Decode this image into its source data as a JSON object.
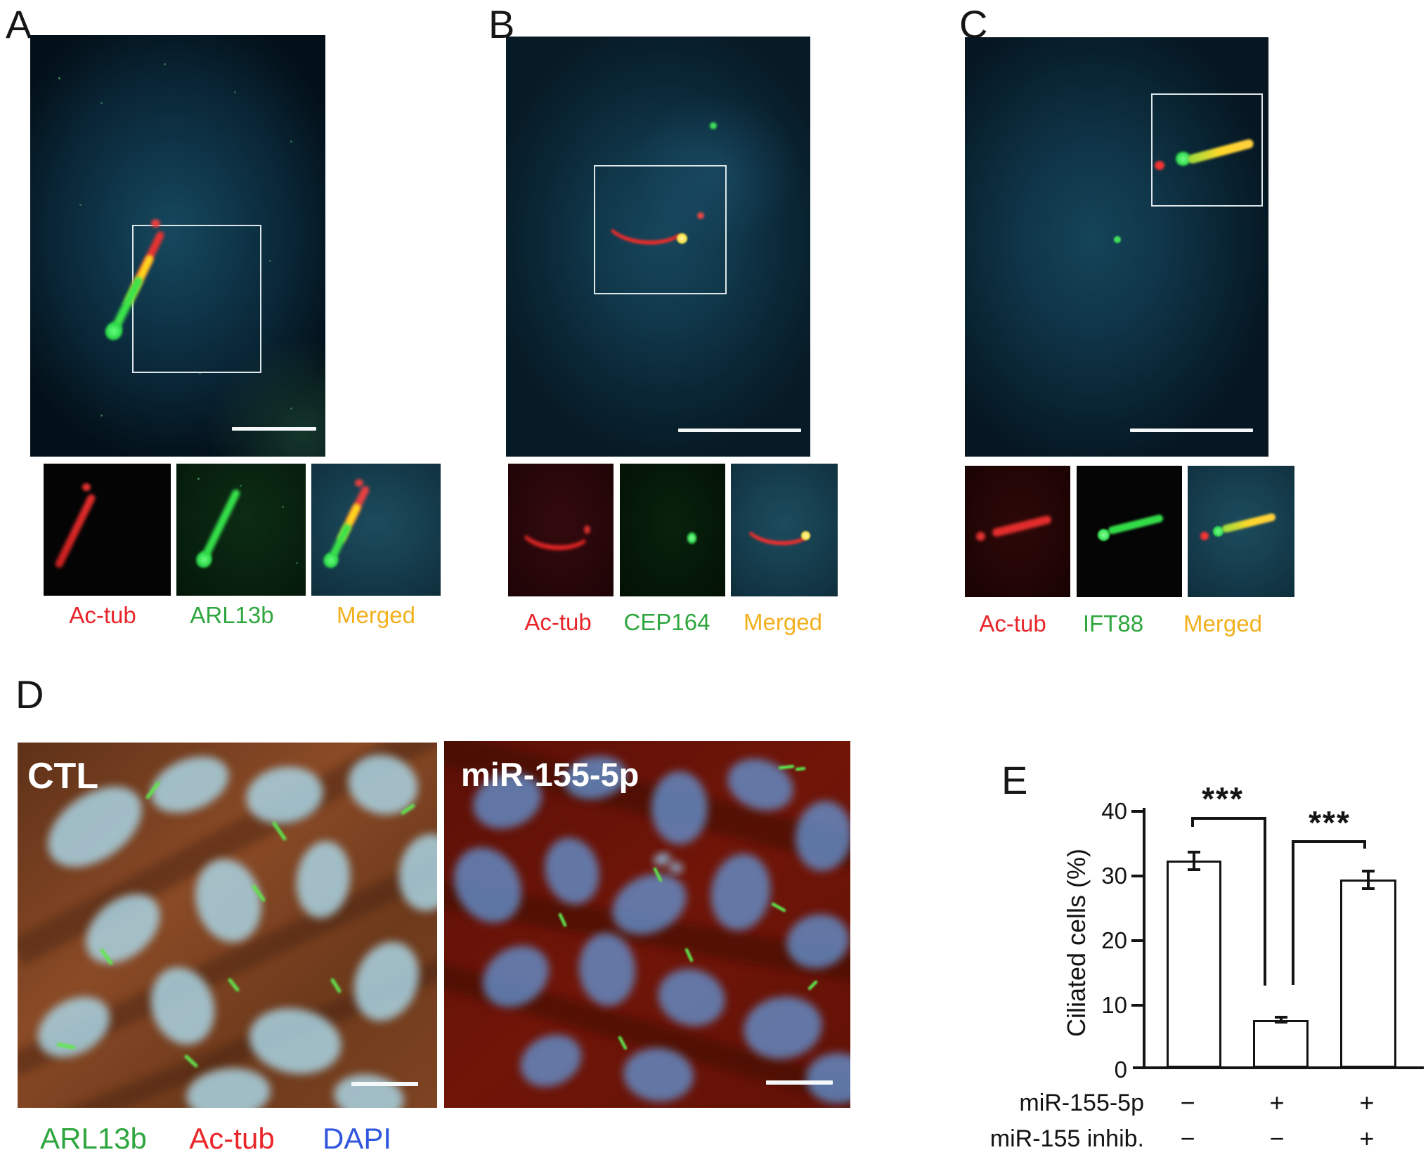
{
  "figure": {
    "panels": {
      "a": {
        "letter": "A",
        "channels": [
          {
            "label": "Ac-tub",
            "color": "#e8262b"
          },
          {
            "label": "ARL13b",
            "color": "#2fa63f"
          },
          {
            "label": "Merged",
            "color": "#f2b01e"
          }
        ]
      },
      "b": {
        "letter": "B",
        "channels": [
          {
            "label": "Ac-tub",
            "color": "#e8262b"
          },
          {
            "label": "CEP164",
            "color": "#2fa63f"
          },
          {
            "label": "Merged",
            "color": "#f2b01e"
          }
        ]
      },
      "c": {
        "letter": "C",
        "channels": [
          {
            "label": "Ac-tub",
            "color": "#e8262b"
          },
          {
            "label": "IFT88",
            "color": "#2fa63f"
          },
          {
            "label": "Merged",
            "color": "#f2b01e"
          }
        ]
      },
      "d": {
        "letter": "D",
        "left_image_label": "CTL",
        "right_image_label": "miR-155-5p",
        "legend": [
          {
            "label": "ARL13b",
            "color": "#2fa63f"
          },
          {
            "label": "Ac-tub",
            "color": "#e8262b"
          },
          {
            "label": "DAPI",
            "color": "#3056dd"
          }
        ]
      },
      "e": {
        "letter": "E"
      }
    }
  },
  "chart_data": {
    "type": "bar",
    "title": "",
    "ylabel": "Ciliated cells (%)",
    "xlabel": "",
    "ylim": [
      0,
      40
    ],
    "yticks": [
      40,
      30,
      20,
      10,
      0
    ],
    "grid": false,
    "bar_fill": "#ffffff",
    "bar_border": "#141414",
    "categories": [
      "control",
      "miR-155-5p",
      "miR-155-5p + miR-155 inhibitor"
    ],
    "values": [
      32.5,
      7.5,
      29.5
    ],
    "errors": [
      1.6,
      0.6,
      1.6
    ],
    "condition_rows": [
      {
        "label": "miR-155-5p",
        "values": [
          "−",
          "+",
          "+"
        ]
      },
      {
        "label": "miR-155 inhib.",
        "values": [
          "−",
          "−",
          "+"
        ]
      }
    ],
    "significance": [
      {
        "between": "bars 1-2",
        "label": "***"
      },
      {
        "between": "bars 2-3",
        "label": "***"
      }
    ]
  }
}
